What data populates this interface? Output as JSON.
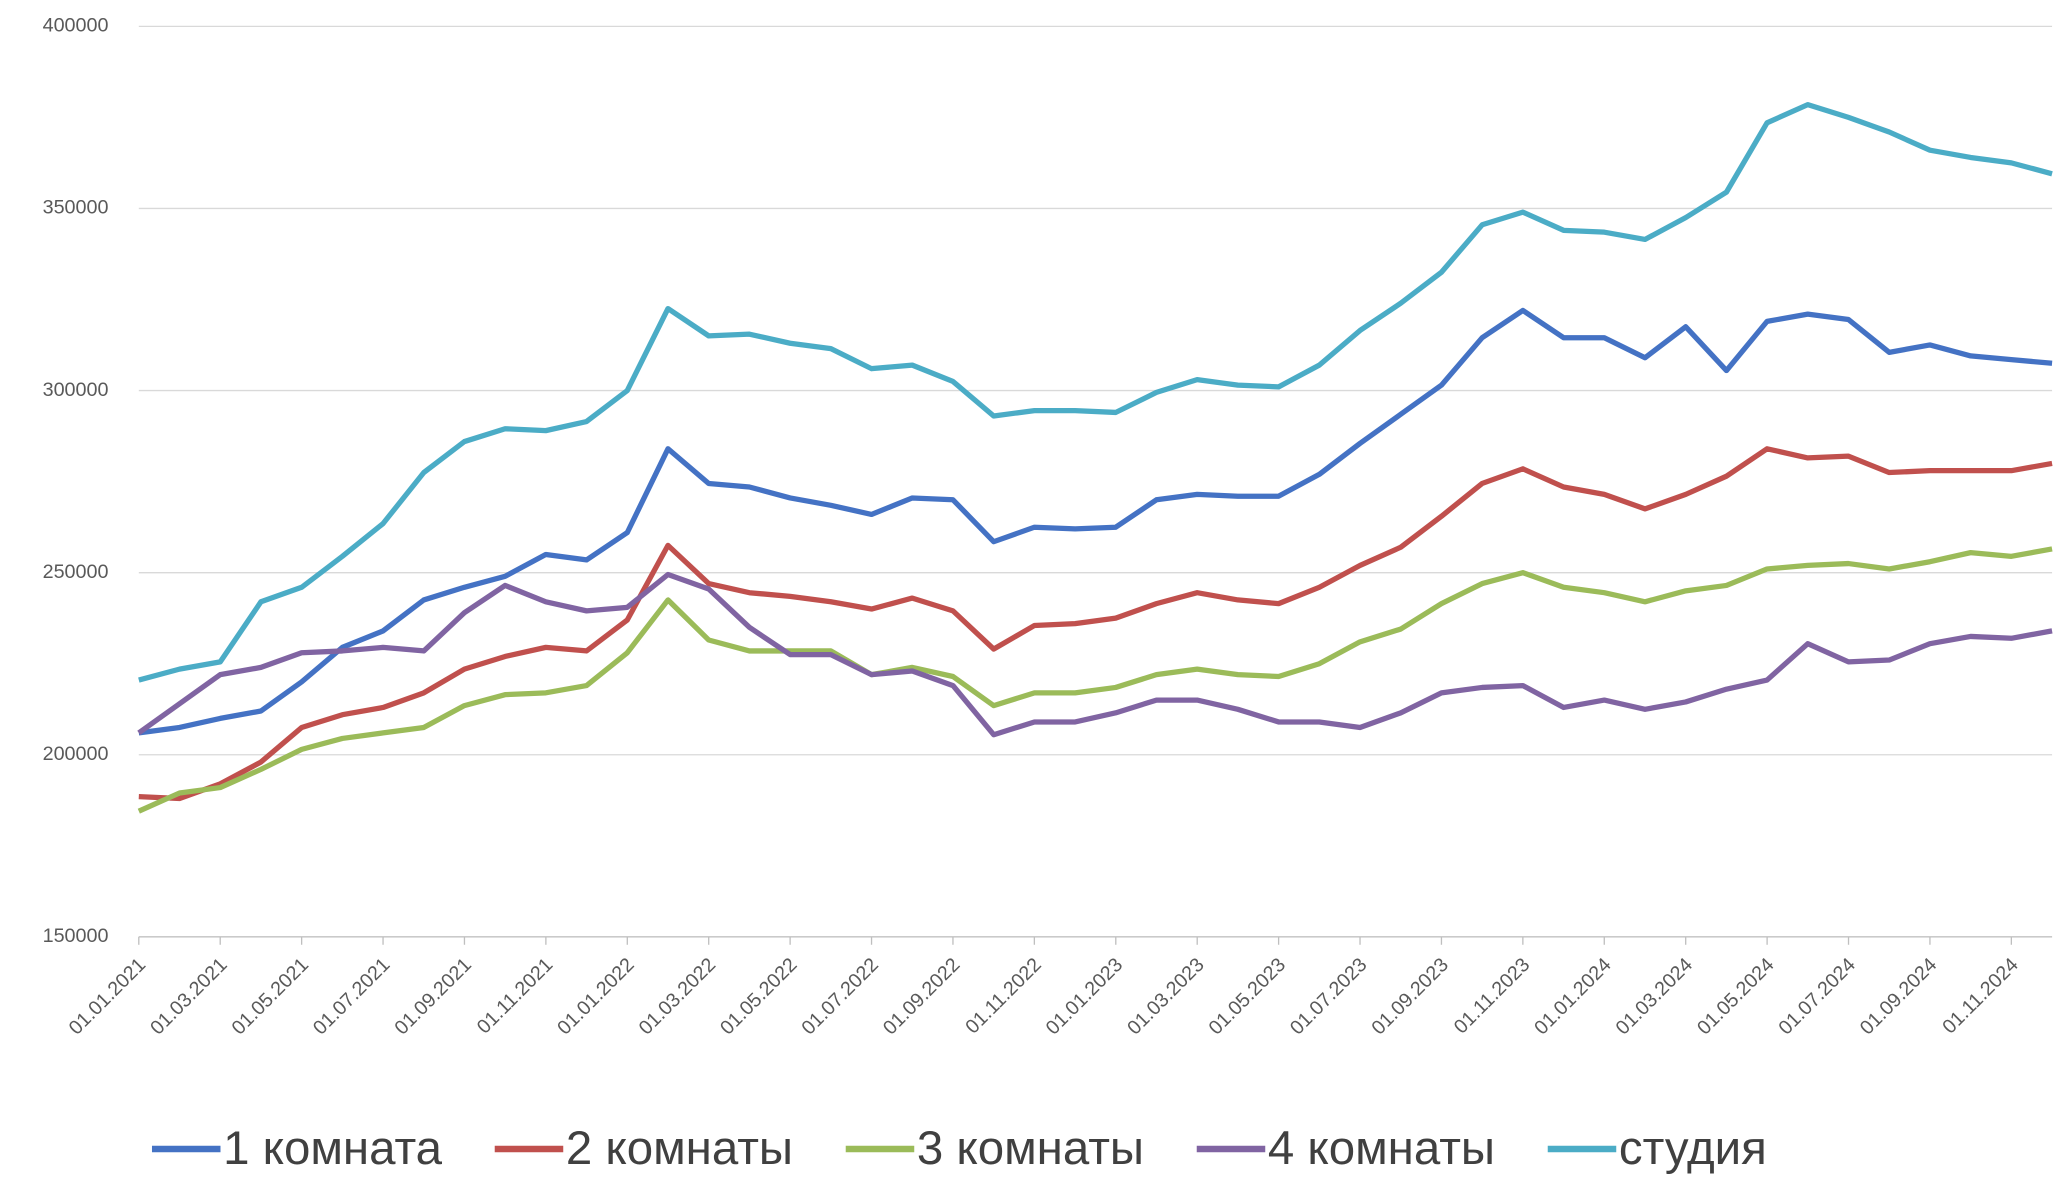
{
  "chart_data": {
    "type": "line",
    "categories": [
      "01.01.2021",
      null,
      "01.03.2021",
      null,
      "01.05.2021",
      null,
      "01.07.2021",
      null,
      "01.09.2021",
      null,
      "01.11.2021",
      null,
      "01.01.2022",
      null,
      "01.03.2022",
      null,
      "01.05.2022",
      null,
      "01.07.2022",
      null,
      "01.09.2022",
      null,
      "01.11.2022",
      null,
      "01.01.2023",
      null,
      "01.03.2023",
      null,
      "01.05.2023",
      null,
      "01.07.2023",
      null,
      "01.09.2023",
      null,
      "01.11.2023",
      null,
      "01.01.2024",
      null,
      "01.03.2024",
      null,
      "01.05.2024",
      null,
      "01.07.2024",
      null,
      "01.09.2024",
      null,
      "01.11.2024",
      null
    ],
    "series": [
      {
        "name": "1 комната",
        "color": "#4472c4",
        "values": [
          206000,
          207500,
          210000,
          212000,
          220000,
          229500,
          234000,
          242500,
          246000,
          249000,
          255000,
          253500,
          261000,
          284000,
          274500,
          273500,
          270500,
          268500,
          266000,
          270500,
          270000,
          258500,
          262500,
          262000,
          262500,
          270000,
          271500,
          271000,
          271000,
          277000,
          285500,
          293500,
          301500,
          314500,
          322000,
          314500,
          314500,
          309000,
          317500,
          305500,
          319000,
          321000,
          319500,
          310500,
          312500,
          309500,
          308500,
          307500
        ]
      },
      {
        "name": "2 комнаты",
        "color": "#c0504d",
        "values": [
          188500,
          188000,
          192000,
          198000,
          207500,
          211000,
          213000,
          217000,
          223500,
          227000,
          229500,
          228500,
          237000,
          257500,
          247000,
          244500,
          243500,
          242000,
          240000,
          243000,
          239500,
          229000,
          235500,
          236000,
          237500,
          241500,
          244500,
          242500,
          241500,
          246000,
          252000,
          257000,
          265500,
          274500,
          278500,
          273500,
          271500,
          267500,
          271500,
          276500,
          284000,
          281500,
          282000,
          277500,
          278000,
          278000,
          278000,
          280000
        ]
      },
      {
        "name": "3 комнаты",
        "color": "#9bbb59",
        "values": [
          184500,
          189500,
          191000,
          196000,
          201500,
          204500,
          206000,
          207500,
          213500,
          216500,
          217000,
          219000,
          228000,
          242500,
          231500,
          228500,
          228500,
          228500,
          222000,
          224000,
          221500,
          213500,
          217000,
          217000,
          218500,
          222000,
          223500,
          222000,
          221500,
          225000,
          231000,
          234500,
          241500,
          247000,
          250000,
          246000,
          244500,
          242000,
          245000,
          246500,
          251000,
          252000,
          252500,
          251000,
          253000,
          255500,
          254500,
          256500
        ]
      },
      {
        "name": "4 комнаты",
        "color": "#8064a2",
        "values": [
          206000,
          214000,
          222000,
          224000,
          228000,
          228500,
          229500,
          228500,
          239000,
          246500,
          242000,
          239500,
          240500,
          249500,
          245500,
          235000,
          227500,
          227500,
          222000,
          223000,
          219000,
          205500,
          209000,
          209000,
          211500,
          215000,
          215000,
          212500,
          209000,
          209000,
          207500,
          211500,
          217000,
          218500,
          219000,
          213000,
          215000,
          212500,
          214500,
          218000,
          220500,
          230500,
          225500,
          226000,
          230500,
          232500,
          232000,
          234000
        ]
      },
      {
        "name": "студия",
        "color": "#4bacc6",
        "values": [
          220500,
          223500,
          225500,
          242000,
          246000,
          254500,
          263500,
          277500,
          286000,
          289500,
          289000,
          291500,
          300000,
          322500,
          315000,
          315500,
          313000,
          311500,
          306000,
          307000,
          302500,
          293000,
          294500,
          294500,
          294000,
          299500,
          303000,
          301500,
          301000,
          307000,
          316500,
          324000,
          332500,
          345500,
          349000,
          344000,
          343500,
          341500,
          347500,
          354500,
          373500,
          378500,
          375000,
          371000,
          366000,
          364000,
          362500,
          359500
        ]
      }
    ],
    "ylim": [
      150000,
      400000
    ],
    "yticks": [
      150000,
      200000,
      250000,
      300000,
      350000,
      400000
    ],
    "grid": true,
    "legend": "bottom"
  }
}
